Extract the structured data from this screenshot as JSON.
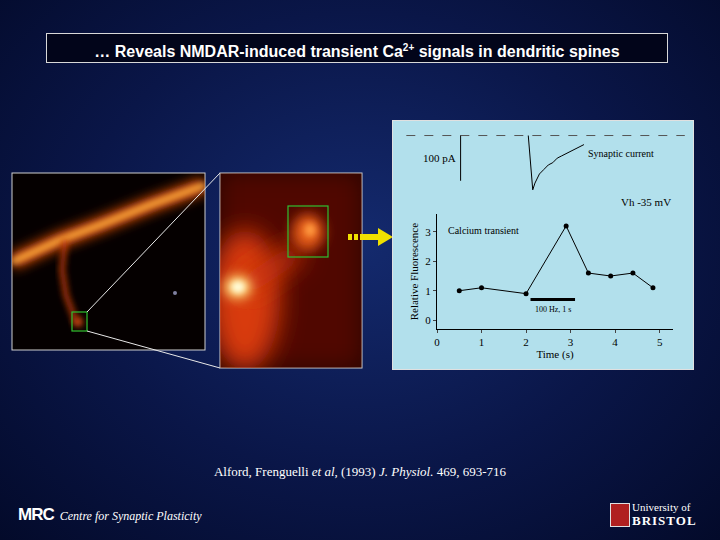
{
  "slide": {
    "title": [
      {
        "text": "… Reveals NMDAR-induced transient Ca",
        "sup": false
      },
      {
        "text": "2+",
        "sup": true
      },
      {
        "text": " signals in dendritic spines",
        "sup": false
      }
    ],
    "citation": [
      {
        "text": "Alford, Frenguelli ",
        "italic": false
      },
      {
        "text": "et al",
        "italic": true
      },
      {
        "text": ", (1993) ",
        "italic": false
      },
      {
        "text": "J. Physiol.",
        "italic": true
      },
      {
        "text": " 469, 693-716",
        "italic": false
      }
    ],
    "footer_left": {
      "logo": "MRC",
      "text": "Centre for Synaptic Plasticity"
    },
    "footer_right": {
      "top": "University of",
      "bottom": "BRISTOL"
    }
  },
  "chart_data": [
    {
      "type": "line",
      "title": "Synaptic current",
      "x": [
        2.05,
        2.1,
        2.15,
        2.2,
        2.3,
        2.4,
        2.5,
        2.6,
        2.7,
        2.8,
        2.9,
        3.0,
        3.1,
        3.2,
        3.3
      ],
      "values": [
        0,
        -60,
        -120,
        -105,
        -85,
        -75,
        -65,
        -60,
        -50,
        -45,
        -40,
        -35,
        -30,
        -25,
        -20
      ],
      "xlim": [
        0,
        5.3
      ],
      "ylim": [
        -130,
        10
      ],
      "tick_labels": false,
      "color": "#000000",
      "scale_bar": {
        "value": 100,
        "label": "100 pA"
      },
      "annotations": [
        "Vh -35 mV"
      ]
    },
    {
      "type": "line",
      "title": "Calcium transient",
      "x": [
        0.5,
        1.0,
        2.0,
        2.9,
        3.4,
        3.9,
        4.4,
        4.85
      ],
      "values": [
        1.0,
        1.1,
        0.9,
        3.2,
        1.6,
        1.5,
        1.6,
        1.1
      ],
      "xlim": [
        0,
        5.3
      ],
      "ylim": [
        -0.3,
        3.6
      ],
      "xticks": [
        0,
        1,
        2,
        3,
        4,
        5
      ],
      "yticks": [
        0,
        1,
        2,
        3
      ],
      "x_label": "Time (s)",
      "y_label": "Relative Fluorescence",
      "marker": "circle",
      "color": "#000000",
      "stimulus": {
        "x": [
          2.1,
          3.1
        ],
        "y": 0.7,
        "label": "100 Hz, 1 s"
      }
    }
  ]
}
